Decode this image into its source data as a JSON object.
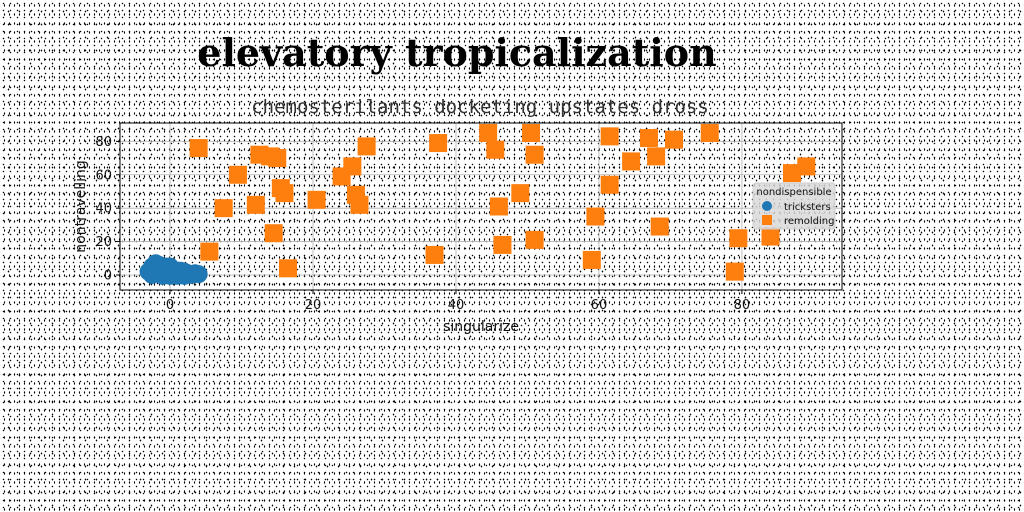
{
  "chart_data": {
    "type": "scatter",
    "title": "elevatory tropicalization",
    "subtitle": "chemosterilants docketing upstates dross",
    "xlabel": "singularize",
    "ylabel": "nontravelling",
    "xlim": [
      -7,
      94
    ],
    "ylim": [
      -9,
      91
    ],
    "xticks": [
      0,
      20,
      40,
      60,
      80
    ],
    "yticks": [
      0,
      20,
      40,
      60,
      80
    ],
    "grid": true,
    "legend": {
      "title": "nondispensible",
      "placement": "right"
    },
    "series": [
      {
        "name": "tricksters",
        "marker": "circle",
        "color": "#1f77b4",
        "points": [
          [
            -2.5,
            5
          ],
          [
            -2.0,
            7
          ],
          [
            -1.5,
            6
          ],
          [
            -1.0,
            4
          ],
          [
            -0.5,
            5
          ],
          [
            -3.0,
            2
          ],
          [
            -2.5,
            0
          ],
          [
            -2.0,
            3
          ],
          [
            -1.5,
            1
          ],
          [
            -1.0,
            2
          ],
          [
            -0.5,
            0
          ],
          [
            0.0,
            3
          ],
          [
            0.5,
            1
          ],
          [
            1.0,
            2
          ],
          [
            1.5,
            0
          ],
          [
            2.0,
            2
          ],
          [
            2.5,
            1
          ],
          [
            3.0,
            0
          ],
          [
            3.5,
            1
          ],
          [
            4.0,
            0.5
          ],
          [
            -1.0,
            -0.5
          ],
          [
            0.0,
            -0.5
          ],
          [
            1.0,
            -0.5
          ],
          [
            2.0,
            -0.5
          ],
          [
            -1.5,
            4
          ],
          [
            -0.5,
            2
          ],
          [
            0.5,
            3
          ],
          [
            1.5,
            2.5
          ],
          [
            -2.5,
            3
          ],
          [
            0.0,
            5
          ]
        ]
      },
      {
        "name": "remolding",
        "marker": "square",
        "color": "#ff7f0e",
        "points": [
          [
            4,
            76
          ],
          [
            5.5,
            14
          ],
          [
            7.5,
            40
          ],
          [
            9.5,
            60
          ],
          [
            12,
            42
          ],
          [
            12.5,
            72
          ],
          [
            14,
            71
          ],
          [
            14.5,
            25
          ],
          [
            15,
            70
          ],
          [
            15.5,
            52
          ],
          [
            16,
            49
          ],
          [
            16.5,
            4
          ],
          [
            20.5,
            45
          ],
          [
            24,
            59
          ],
          [
            25.5,
            65
          ],
          [
            26,
            48
          ],
          [
            26.5,
            42
          ],
          [
            27.5,
            77
          ],
          [
            37,
            12
          ],
          [
            37.5,
            79
          ],
          [
            44.5,
            85
          ],
          [
            45.5,
            75
          ],
          [
            46,
            41
          ],
          [
            46.5,
            18
          ],
          [
            49,
            49
          ],
          [
            50.5,
            85
          ],
          [
            51,
            72
          ],
          [
            51,
            21
          ],
          [
            59,
            9
          ],
          [
            59.5,
            35
          ],
          [
            61.5,
            83
          ],
          [
            61.5,
            54
          ],
          [
            64.5,
            68
          ],
          [
            67,
            82
          ],
          [
            68,
            71
          ],
          [
            68.5,
            29
          ],
          [
            70.5,
            81
          ],
          [
            75.5,
            85
          ],
          [
            79,
            2
          ],
          [
            79.5,
            22
          ],
          [
            84,
            23
          ],
          [
            87,
            61
          ],
          [
            89,
            65
          ]
        ]
      }
    ]
  }
}
